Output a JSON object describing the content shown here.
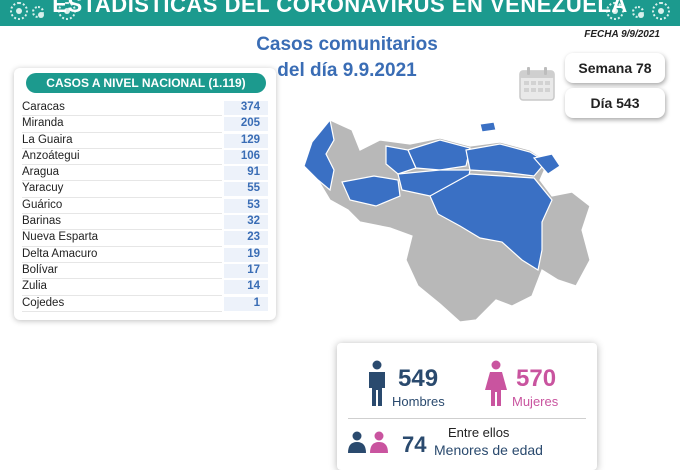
{
  "header": {
    "title": "ESTADÍSTICAS DEL CORONAVIRUS EN VENEZUELA",
    "date": "FECHA 9/9/2021"
  },
  "headline": {
    "line1": "Casos comunitarios",
    "line2": "del día 9.9.2021"
  },
  "counters": {
    "week": "Semana 78",
    "day": "Día 543"
  },
  "table": {
    "title": "CASOS A NIVEL NACIONAL (1.119)",
    "rows": [
      {
        "name": "Caracas",
        "value": "374"
      },
      {
        "name": "Miranda",
        "value": "205"
      },
      {
        "name": "La Guaira",
        "value": "129"
      },
      {
        "name": "Anzoátegui",
        "value": "106"
      },
      {
        "name": "Aragua",
        "value": "91"
      },
      {
        "name": "Yaracuy",
        "value": "55"
      },
      {
        "name": "Guárico",
        "value": "53"
      },
      {
        "name": "Barinas",
        "value": "32"
      },
      {
        "name": "Nueva Esparta",
        "value": "23"
      },
      {
        "name": "Delta Amacuro",
        "value": "19"
      },
      {
        "name": "Bolívar",
        "value": "17"
      },
      {
        "name": "Zulia",
        "value": "14"
      },
      {
        "name": "Cojedes",
        "value": "1"
      }
    ]
  },
  "gender": {
    "men_count": "549",
    "men_label": "Hombres",
    "women_count": "570",
    "women_label": "Mujeres"
  },
  "minors": {
    "prefix": "Entre ellos",
    "count": "74",
    "label": "Menores de edad"
  },
  "colors": {
    "teal": "#1c9a8e",
    "blue": "#3a6db5",
    "map_blue": "#3a70c4",
    "map_gray": "#b8b8b8",
    "navy": "#2a4a6e",
    "pink": "#c9549f"
  },
  "icons": [
    "virus-icon",
    "calendar-icon",
    "man-icon",
    "woman-icon",
    "people-icon"
  ]
}
